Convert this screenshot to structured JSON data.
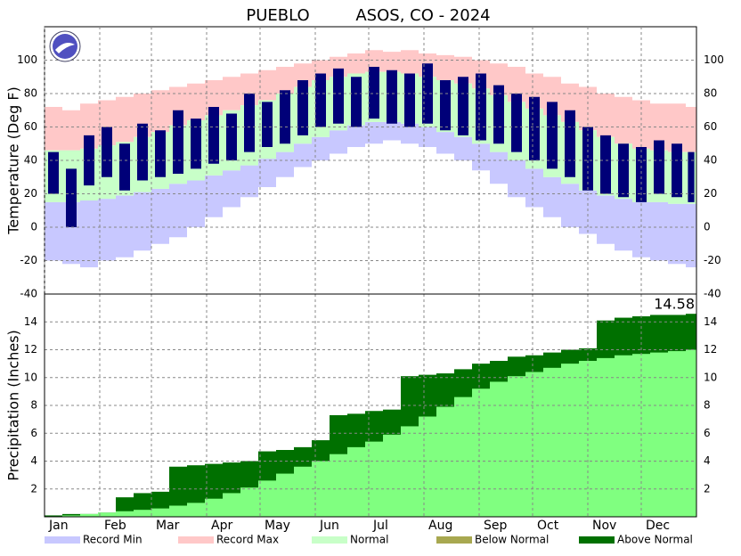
{
  "station": "PUEBLO",
  "title": "ASOS, CO - 2024",
  "legend": [
    {
      "label": "Record Min",
      "color": "#c8c8ff"
    },
    {
      "label": "Record Max",
      "color": "#ffc8c8"
    },
    {
      "label": "Normal",
      "color": "#c8ffc8"
    },
    {
      "label": "Below Normal",
      "color": "#a8a850"
    },
    {
      "label": "Above Normal",
      "color": "#007000"
    }
  ],
  "chart_data": [
    {
      "type": "temperature_bands",
      "y_label": "Temperature (Deg F)",
      "x": [
        1,
        11,
        21,
        31,
        41,
        51,
        61,
        71,
        81,
        91,
        101,
        111,
        121,
        131,
        141,
        151,
        161,
        171,
        181,
        191,
        201,
        211,
        221,
        231,
        241,
        251,
        261,
        271,
        281,
        291,
        301,
        311,
        321,
        331,
        341,
        351,
        361
      ],
      "xlim": [
        1,
        367
      ],
      "ylim": [
        -40,
        120
      ],
      "yticks": [
        -40,
        -20,
        0,
        20,
        40,
        60,
        80,
        100
      ],
      "grid": true,
      "record_min": {
        "color": "#c8c8ff",
        "values": [
          -20,
          -22,
          -24,
          -20,
          -18,
          -14,
          -10,
          -6,
          0,
          6,
          12,
          18,
          24,
          30,
          36,
          40,
          44,
          48,
          50,
          52,
          50,
          48,
          44,
          40,
          34,
          26,
          18,
          12,
          6,
          0,
          -4,
          -10,
          -14,
          -18,
          -20,
          -22,
          -24
        ]
      },
      "record_max": {
        "color": "#ffc8c8",
        "values": [
          72,
          70,
          74,
          76,
          78,
          80,
          82,
          84,
          86,
          88,
          90,
          92,
          94,
          96,
          98,
          100,
          102,
          104,
          106,
          105,
          106,
          104,
          103,
          102,
          100,
          98,
          96,
          92,
          90,
          86,
          84,
          80,
          78,
          76,
          74,
          74,
          72
        ]
      },
      "normal": {
        "color": "#c8ffc8",
        "low": [
          15,
          15,
          16,
          17,
          19,
          21,
          23,
          26,
          28,
          31,
          34,
          37,
          41,
          45,
          50,
          54,
          58,
          61,
          63,
          63,
          62,
          60,
          57,
          54,
          50,
          45,
          40,
          35,
          30,
          26,
          22,
          19,
          17,
          15,
          15,
          14,
          14
        ],
        "high": [
          46,
          46,
          47,
          49,
          51,
          54,
          57,
          61,
          64,
          67,
          70,
          73,
          76,
          80,
          84,
          88,
          90,
          92,
          93,
          93,
          92,
          90,
          88,
          86,
          83,
          79,
          75,
          71,
          67,
          63,
          58,
          54,
          50,
          47,
          46,
          45,
          45
        ]
      },
      "actual": {
        "color": "#000078",
        "low": [
          20,
          0,
          25,
          30,
          22,
          28,
          30,
          32,
          35,
          38,
          40,
          45,
          48,
          50,
          55,
          60,
          62,
          60,
          65,
          62,
          60,
          62,
          58,
          55,
          52,
          50,
          45,
          40,
          35,
          30,
          22,
          20,
          18,
          15,
          20,
          18,
          15
        ],
        "high": [
          45,
          35,
          55,
          60,
          50,
          62,
          58,
          70,
          65,
          72,
          68,
          80,
          75,
          82,
          88,
          92,
          95,
          90,
          96,
          94,
          92,
          98,
          88,
          90,
          92,
          85,
          80,
          78,
          75,
          70,
          60,
          55,
          50,
          48,
          52,
          50,
          45
        ]
      }
    },
    {
      "type": "cumulative_precip",
      "y_label": "Precipitation (Inches)",
      "x": [
        1,
        11,
        21,
        31,
        41,
        51,
        61,
        71,
        81,
        91,
        101,
        111,
        121,
        131,
        141,
        151,
        161,
        171,
        181,
        191,
        201,
        211,
        221,
        231,
        241,
        251,
        261,
        271,
        281,
        291,
        301,
        311,
        321,
        331,
        341,
        351,
        361
      ],
      "xlim": [
        1,
        367
      ],
      "ylim": [
        0,
        16
      ],
      "yticks": [
        2,
        4,
        6,
        8,
        10,
        12,
        14
      ],
      "grid": true,
      "xticks": [
        {
          "value": 1,
          "label": "Jan"
        },
        {
          "value": 32,
          "label": "Feb"
        },
        {
          "value": 61,
          "label": "Mar"
        },
        {
          "value": 92,
          "label": "Apr"
        },
        {
          "value": 122,
          "label": "May"
        },
        {
          "value": 153,
          "label": "Jun"
        },
        {
          "value": 183,
          "label": "Jul"
        },
        {
          "value": 214,
          "label": "Aug"
        },
        {
          "value": 245,
          "label": "Sep"
        },
        {
          "value": 275,
          "label": "Oct"
        },
        {
          "value": 306,
          "label": "Nov"
        },
        {
          "value": 336,
          "label": "Dec"
        }
      ],
      "actual": {
        "color": "#007000",
        "values": [
          0.1,
          0.2,
          0.2,
          0.3,
          1.4,
          1.7,
          1.8,
          3.6,
          3.7,
          3.8,
          3.9,
          4.0,
          4.7,
          4.8,
          5.0,
          5.5,
          7.3,
          7.4,
          7.6,
          7.7,
          10.1,
          10.2,
          10.3,
          10.6,
          11.0,
          11.2,
          11.5,
          11.6,
          11.8,
          12.0,
          12.1,
          14.1,
          14.3,
          14.4,
          14.5,
          14.5,
          14.58
        ]
      },
      "normal": {
        "color": "#80ff80",
        "values": [
          0.0,
          0.1,
          0.2,
          0.3,
          0.4,
          0.5,
          0.6,
          0.8,
          1.0,
          1.3,
          1.7,
          2.1,
          2.6,
          3.1,
          3.6,
          4.0,
          4.5,
          5.0,
          5.4,
          5.9,
          6.5,
          7.2,
          7.9,
          8.6,
          9.2,
          9.7,
          10.1,
          10.4,
          10.7,
          11.0,
          11.2,
          11.4,
          11.6,
          11.7,
          11.8,
          11.9,
          12.0
        ]
      }
    }
  ]
}
